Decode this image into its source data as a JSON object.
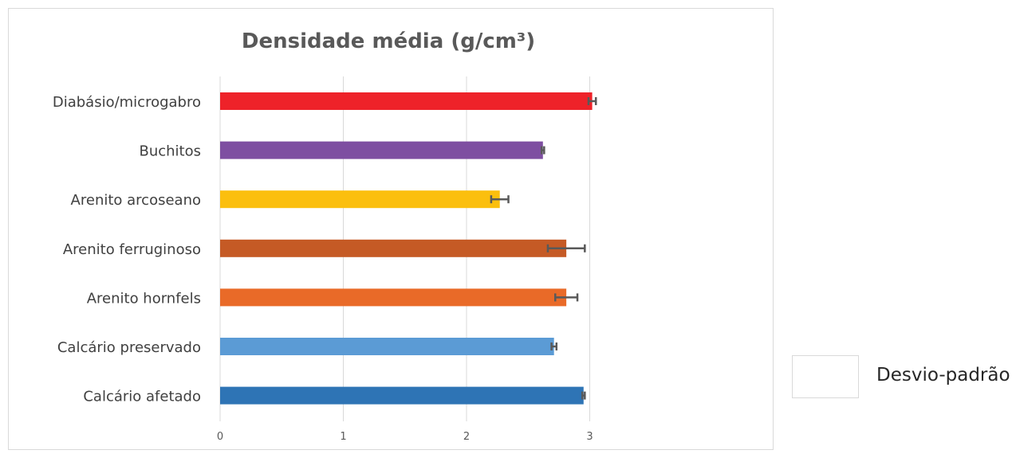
{
  "chart_data": {
    "type": "bar",
    "orientation": "horizontal",
    "title": "Densidade média (g/cm³)",
    "categories": [
      "Diabásio/microgabro",
      "Buchitos",
      "Arenito arcoseano",
      "Arenito ferruginoso",
      "Arenito hornfels",
      "Calcário preservado",
      "Calcário afetado"
    ],
    "values": [
      3.02,
      2.62,
      2.27,
      2.81,
      2.81,
      2.71,
      2.95
    ],
    "errors": [
      0.03,
      0.01,
      0.07,
      0.15,
      0.09,
      0.02,
      0.01
    ],
    "colors": [
      "#ee2229",
      "#7e4ea1",
      "#fbbf0e",
      "#c55a25",
      "#e96a28",
      "#5b9bd5",
      "#2e74b5"
    ],
    "error_bar_color": "#595959",
    "xlim": [
      0,
      3
    ],
    "xticks": [
      "0",
      "1",
      "2",
      "3"
    ],
    "xlabel": "",
    "ylabel": "",
    "grid": true,
    "legend": {
      "position": "right",
      "entries": [
        "Desvio-padrão"
      ]
    }
  }
}
